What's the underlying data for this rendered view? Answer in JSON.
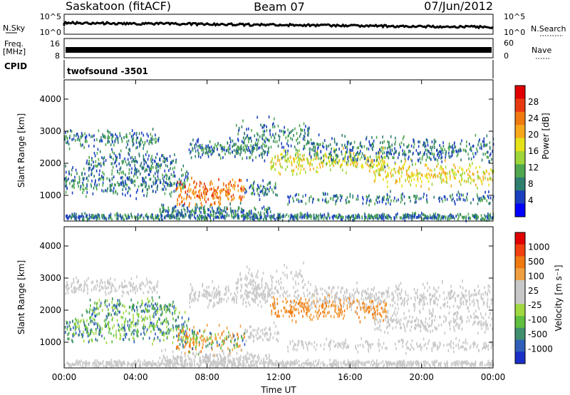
{
  "header": {
    "station": "Saskatoon (fitACF)",
    "beam": "Beam 07",
    "date": "07/Jun/2012"
  },
  "top_panels": {
    "nsky_label": "N.Sky",
    "nsky_ticks": [
      "10^5",
      "10^0"
    ],
    "nsearch_label": "N.Search",
    "nsearch_ticks": [
      "10^5",
      "10^0"
    ],
    "freq_label_1": "Freq.",
    "freq_label_2": "[MHz]",
    "freq_ticks": [
      "16",
      "8"
    ],
    "nave_label": "Nave",
    "nave_ticks": [
      "60",
      "0"
    ],
    "cpid_label": "CPID",
    "cpid_value": "twofsound -3501"
  },
  "chart_data": [
    {
      "type": "heatmap",
      "name": "power-panel",
      "ylabel": "Slant Range [km]",
      "ylim": [
        200,
        4600
      ],
      "y_ticks": [
        "4000",
        "3000",
        "2000",
        "1000"
      ],
      "y_tick_values": [
        4000,
        3000,
        2000,
        1000
      ],
      "colorbar_label": "Power [dB]",
      "colorbar_ticks": [
        "28",
        "24",
        "20",
        "16",
        "12",
        "8",
        "4"
      ],
      "colorbar_colors": [
        "#0000ff",
        "#1a3fbf",
        "#2f7f6f",
        "#4fa84f",
        "#9fd63a",
        "#e6e21a",
        "#f7a81a",
        "#f07a10",
        "#e83a10",
        "#e00000"
      ],
      "grid": false
    },
    {
      "type": "heatmap",
      "name": "velocity-panel",
      "ylabel": "Slant Range [km]",
      "ylim": [
        200,
        4600
      ],
      "y_ticks": [
        "4000",
        "3000",
        "2000",
        "1000"
      ],
      "y_tick_values": [
        4000,
        3000,
        2000,
        1000
      ],
      "colorbar_label": "Velocity [m s⁻¹]",
      "colorbar_ticks": [
        "1000",
        "500",
        "100",
        "25",
        "-25",
        "-100",
        "-500",
        "-1000"
      ],
      "colorbar_colors": [
        "#1a2fc8",
        "#2f5fb8",
        "#3f8f6f",
        "#5fbf3f",
        "#9fd83f",
        "#c8c8c8",
        "#c8c8c8",
        "#f0a040",
        "#f07a10",
        "#f04010",
        "#e00000"
      ],
      "grid": false
    }
  ],
  "time_axis": {
    "xlabel": "Time UT",
    "ticks": [
      "00:00",
      "04:00",
      "08:00",
      "12:00",
      "16:00",
      "20:00",
      "00:00"
    ]
  }
}
